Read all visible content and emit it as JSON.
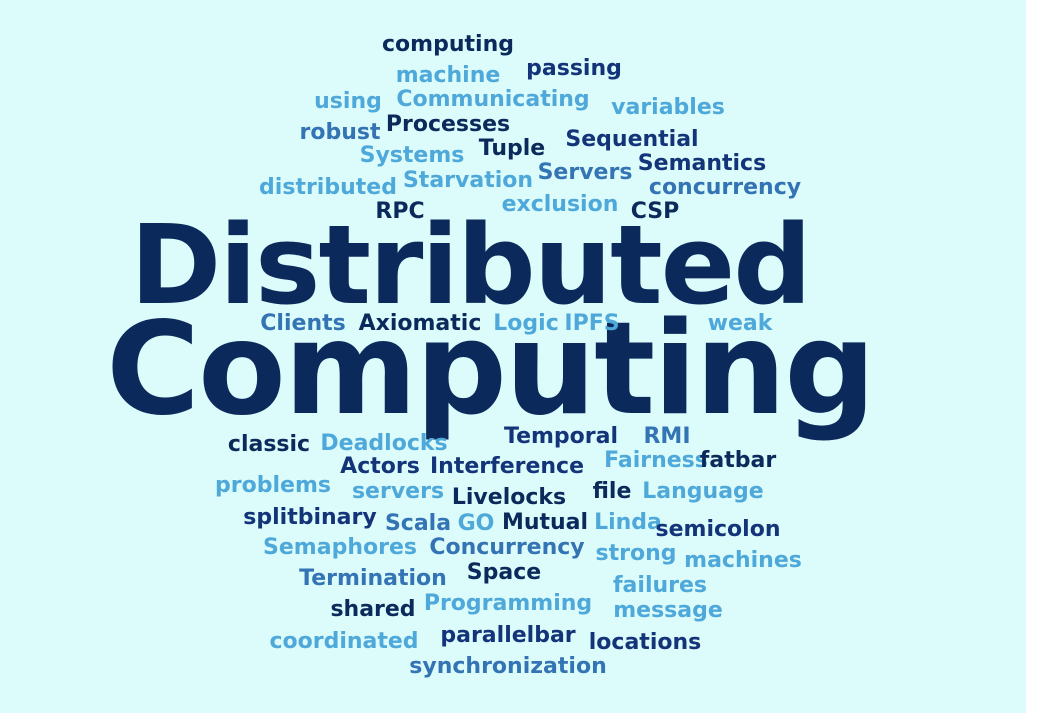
{
  "palette": {
    "background": "#dcfbfb",
    "dark": "#0b2a5b",
    "navy": "#14347a",
    "mid": "#3474b4",
    "light": "#4ea9da"
  },
  "words": [
    {
      "text": "Distributed",
      "tone": "dark"
    },
    {
      "text": "Computing",
      "tone": "dark"
    },
    {
      "text": "computing",
      "tone": "dark"
    },
    {
      "text": "machine",
      "tone": "light"
    },
    {
      "text": "passing",
      "tone": "navy"
    },
    {
      "text": "using",
      "tone": "light"
    },
    {
      "text": "Communicating",
      "tone": "light"
    },
    {
      "text": "variables",
      "tone": "light"
    },
    {
      "text": "robust",
      "tone": "mid"
    },
    {
      "text": "Processes",
      "tone": "dark"
    },
    {
      "text": "Sequential",
      "tone": "navy"
    },
    {
      "text": "Systems",
      "tone": "light"
    },
    {
      "text": "Tuple",
      "tone": "dark"
    },
    {
      "text": "Semantics",
      "tone": "navy"
    },
    {
      "text": "Servers",
      "tone": "mid"
    },
    {
      "text": "distributed",
      "tone": "light"
    },
    {
      "text": "Starvation",
      "tone": "light"
    },
    {
      "text": "concurrency",
      "tone": "mid"
    },
    {
      "text": "exclusion",
      "tone": "light"
    },
    {
      "text": "RPC",
      "tone": "dark"
    },
    {
      "text": "CSP",
      "tone": "dark"
    },
    {
      "text": "Clients",
      "tone": "mid"
    },
    {
      "text": "Axiomatic",
      "tone": "dark"
    },
    {
      "text": "Logic",
      "tone": "light"
    },
    {
      "text": "IPFS",
      "tone": "light"
    },
    {
      "text": "weak",
      "tone": "light"
    },
    {
      "text": "classic",
      "tone": "dark"
    },
    {
      "text": "Deadlocks",
      "tone": "light"
    },
    {
      "text": "Temporal",
      "tone": "navy"
    },
    {
      "text": "RMI",
      "tone": "mid"
    },
    {
      "text": "Actors",
      "tone": "navy"
    },
    {
      "text": "Interference",
      "tone": "navy"
    },
    {
      "text": "Fairness",
      "tone": "light"
    },
    {
      "text": "fatbar",
      "tone": "dark"
    },
    {
      "text": "problems",
      "tone": "light"
    },
    {
      "text": "servers",
      "tone": "light"
    },
    {
      "text": "Livelocks",
      "tone": "dark"
    },
    {
      "text": "file",
      "tone": "dark"
    },
    {
      "text": "Language",
      "tone": "light"
    },
    {
      "text": "splitbinary",
      "tone": "navy"
    },
    {
      "text": "Scala",
      "tone": "mid"
    },
    {
      "text": "GO",
      "tone": "light"
    },
    {
      "text": "Mutual",
      "tone": "dark"
    },
    {
      "text": "Linda",
      "tone": "light"
    },
    {
      "text": "semicolon",
      "tone": "navy"
    },
    {
      "text": "Semaphores",
      "tone": "light"
    },
    {
      "text": "Concurrency",
      "tone": "mid"
    },
    {
      "text": "strong",
      "tone": "light"
    },
    {
      "text": "machines",
      "tone": "light"
    },
    {
      "text": "Termination",
      "tone": "mid"
    },
    {
      "text": "Space",
      "tone": "dark"
    },
    {
      "text": "failures",
      "tone": "light"
    },
    {
      "text": "shared",
      "tone": "dark"
    },
    {
      "text": "Programming",
      "tone": "light"
    },
    {
      "text": "message",
      "tone": "light"
    },
    {
      "text": "coordinated",
      "tone": "light"
    },
    {
      "text": "parallelbar",
      "tone": "navy"
    },
    {
      "text": "locations",
      "tone": "navy"
    },
    {
      "text": "synchronization",
      "tone": "mid"
    }
  ]
}
